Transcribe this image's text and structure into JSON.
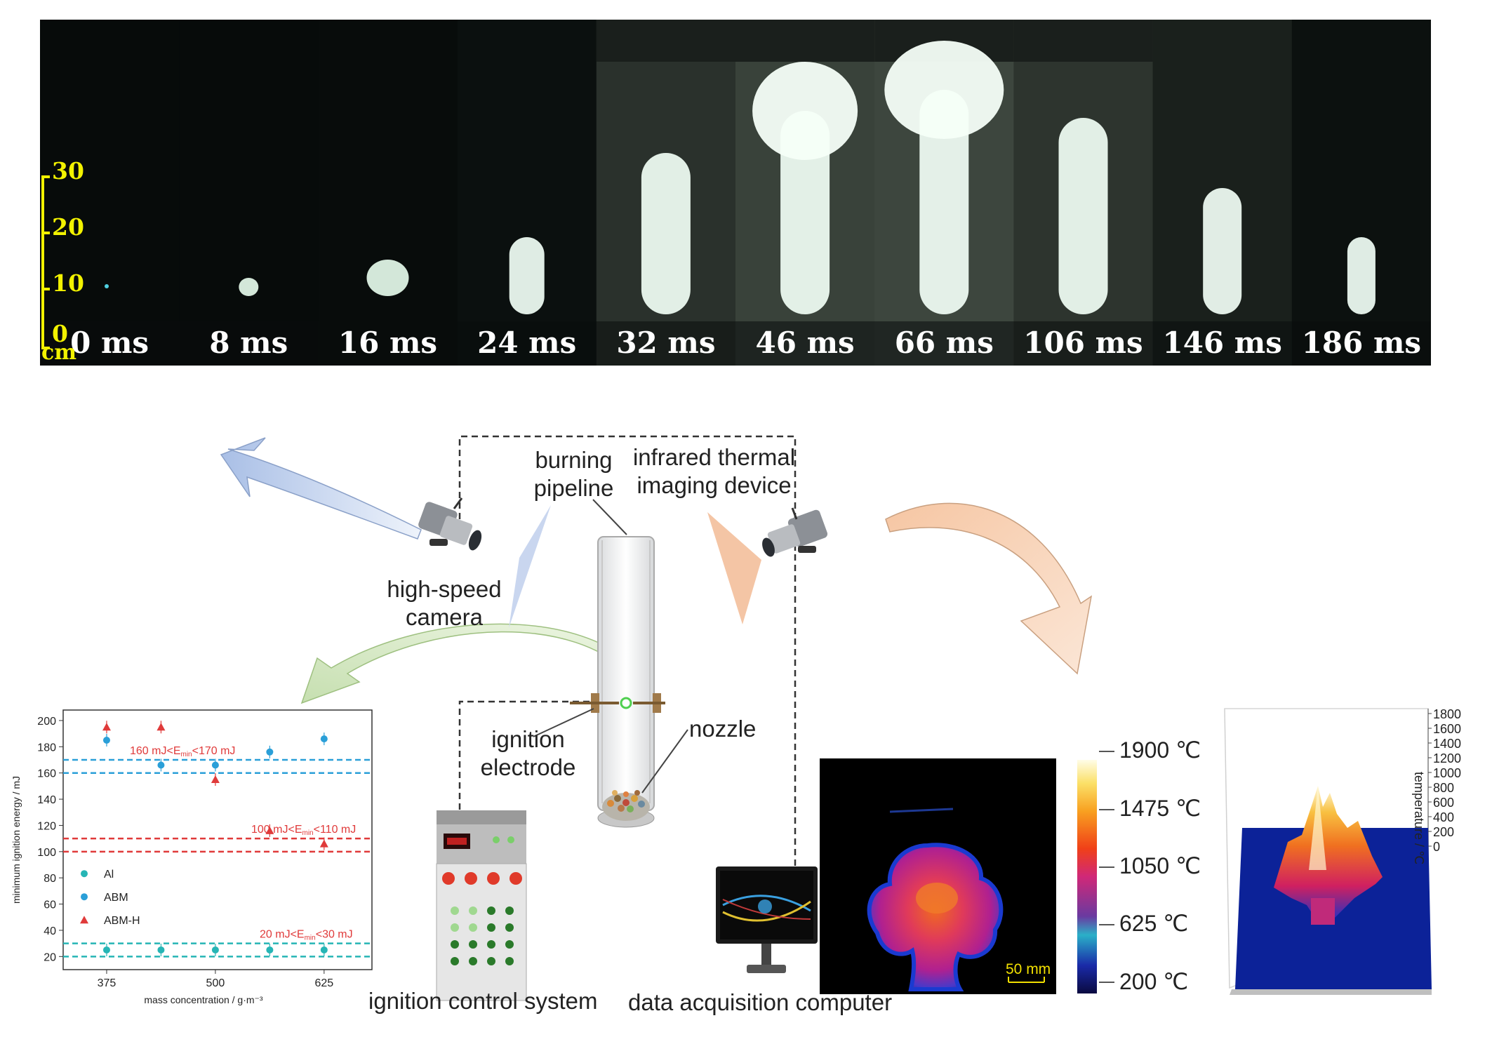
{
  "film_strip": {
    "frames": [
      "0 ms",
      "8 ms",
      "16 ms",
      "24 ms",
      "32 ms",
      "46 ms",
      "66 ms",
      "106 ms",
      "146 ms",
      "186 ms"
    ],
    "scale": {
      "ticks": [
        "30",
        "20",
        "10",
        "0"
      ],
      "unit": "cm",
      "color": "#f2f200"
    }
  },
  "setup": {
    "high_speed_camera": "high-speed\ncamera",
    "burning_pipeline": "burning\npipeline",
    "infrared_thermal": "infrared thermal\nimaging device",
    "ignition_electrode": "ignition\nelectrode",
    "nozzle": "nozzle",
    "ignition_control": "ignition control system",
    "data_acquisition": "data acquisition computer",
    "scale_bar": "50 mm"
  },
  "colorbar": {
    "labels": [
      "1900 ℃",
      "1475 ℃",
      "1050 ℃",
      "625 ℃",
      "200 ℃"
    ]
  },
  "surface_plot": {
    "zlabel": "temperature / ℃",
    "ticks": [
      "1800",
      "1600",
      "1400",
      "1200",
      "1000",
      "800",
      "600",
      "400",
      "200",
      "0"
    ]
  },
  "chart_data": {
    "type": "scatter",
    "xlabel": "mass concentration / g·m⁻³",
    "ylabel": "minimum ignition energy / mJ",
    "x_ticks": [
      "375",
      "500",
      "625"
    ],
    "y_ticks": [
      20,
      40,
      60,
      80,
      100,
      120,
      140,
      160,
      180,
      200
    ],
    "xlim": [
      325,
      680
    ],
    "ylim": [
      10,
      208
    ],
    "series": [
      {
        "name": "Al",
        "color": "#26b5b5",
        "marker": "circle",
        "x": [
          375,
          437.5,
          500,
          562.5,
          625
        ],
        "y": [
          25,
          25,
          25,
          25,
          25
        ]
      },
      {
        "name": "ABM",
        "color": "#2a9fd8",
        "marker": "circle",
        "x": [
          375,
          437.5,
          500,
          562.5,
          625
        ],
        "y": [
          185,
          166,
          166,
          176,
          186
        ]
      },
      {
        "name": "ABM-H",
        "color": "#e03a3a",
        "marker": "triangle",
        "x": [
          375,
          437.5,
          500,
          562.5,
          625
        ],
        "y": [
          195,
          195,
          155,
          116,
          106
        ]
      }
    ],
    "bands": [
      {
        "lower": 160,
        "upper": 170,
        "color": "#2a9fd8",
        "text": "160 mJ<E",
        "sub": "min",
        "text2": "<170 mJ"
      },
      {
        "lower": 100,
        "upper": 110,
        "color": "#e03a3a",
        "text": "100 mJ<E",
        "sub": "min",
        "text2": "<110 mJ"
      },
      {
        "lower": 20,
        "upper": 30,
        "color": "#26b5b5",
        "text": "20 mJ<E",
        "sub": "min",
        "text2": "<30 mJ"
      }
    ]
  }
}
